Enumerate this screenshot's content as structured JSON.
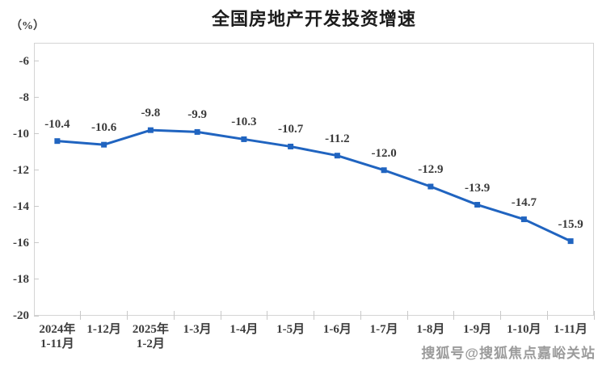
{
  "title": "全国房地产开发投资增速",
  "unit_label": "（%）",
  "watermark": "搜狐号@搜狐焦点嘉峪关站",
  "chart_data": {
    "type": "line",
    "title": "全国房地产开发投资增速",
    "ylabel": "（%）",
    "xlabel": "",
    "categories": [
      "2024年\n1-11月",
      "1-12月",
      "2025年\n1-2月",
      "1-3月",
      "1-4月",
      "1-5月",
      "1-6月",
      "1-7月",
      "1-8月",
      "1-9月",
      "1-10月",
      "1-11月"
    ],
    "values": [
      -10.4,
      -10.6,
      -9.8,
      -9.9,
      -10.3,
      -10.7,
      -11.2,
      -12.0,
      -12.9,
      -13.9,
      -14.7,
      -15.9
    ],
    "data_labels": [
      "-10.4",
      "-10.6",
      "-9.8",
      "-9.9",
      "-10.3",
      "-10.7",
      "-11.2",
      "-12.0",
      "-12.9",
      "-13.9",
      "-14.7",
      "-15.9"
    ],
    "ylim": [
      -20,
      -5
    ],
    "yticks": [
      -6,
      -8,
      -10,
      -12,
      -14,
      -16,
      -18,
      -20
    ],
    "grid": false,
    "legend": "none",
    "line_color": "#2064c0",
    "marker": "square",
    "label_color": "#3a3a3a",
    "axis_color": "#d4d4d4"
  }
}
